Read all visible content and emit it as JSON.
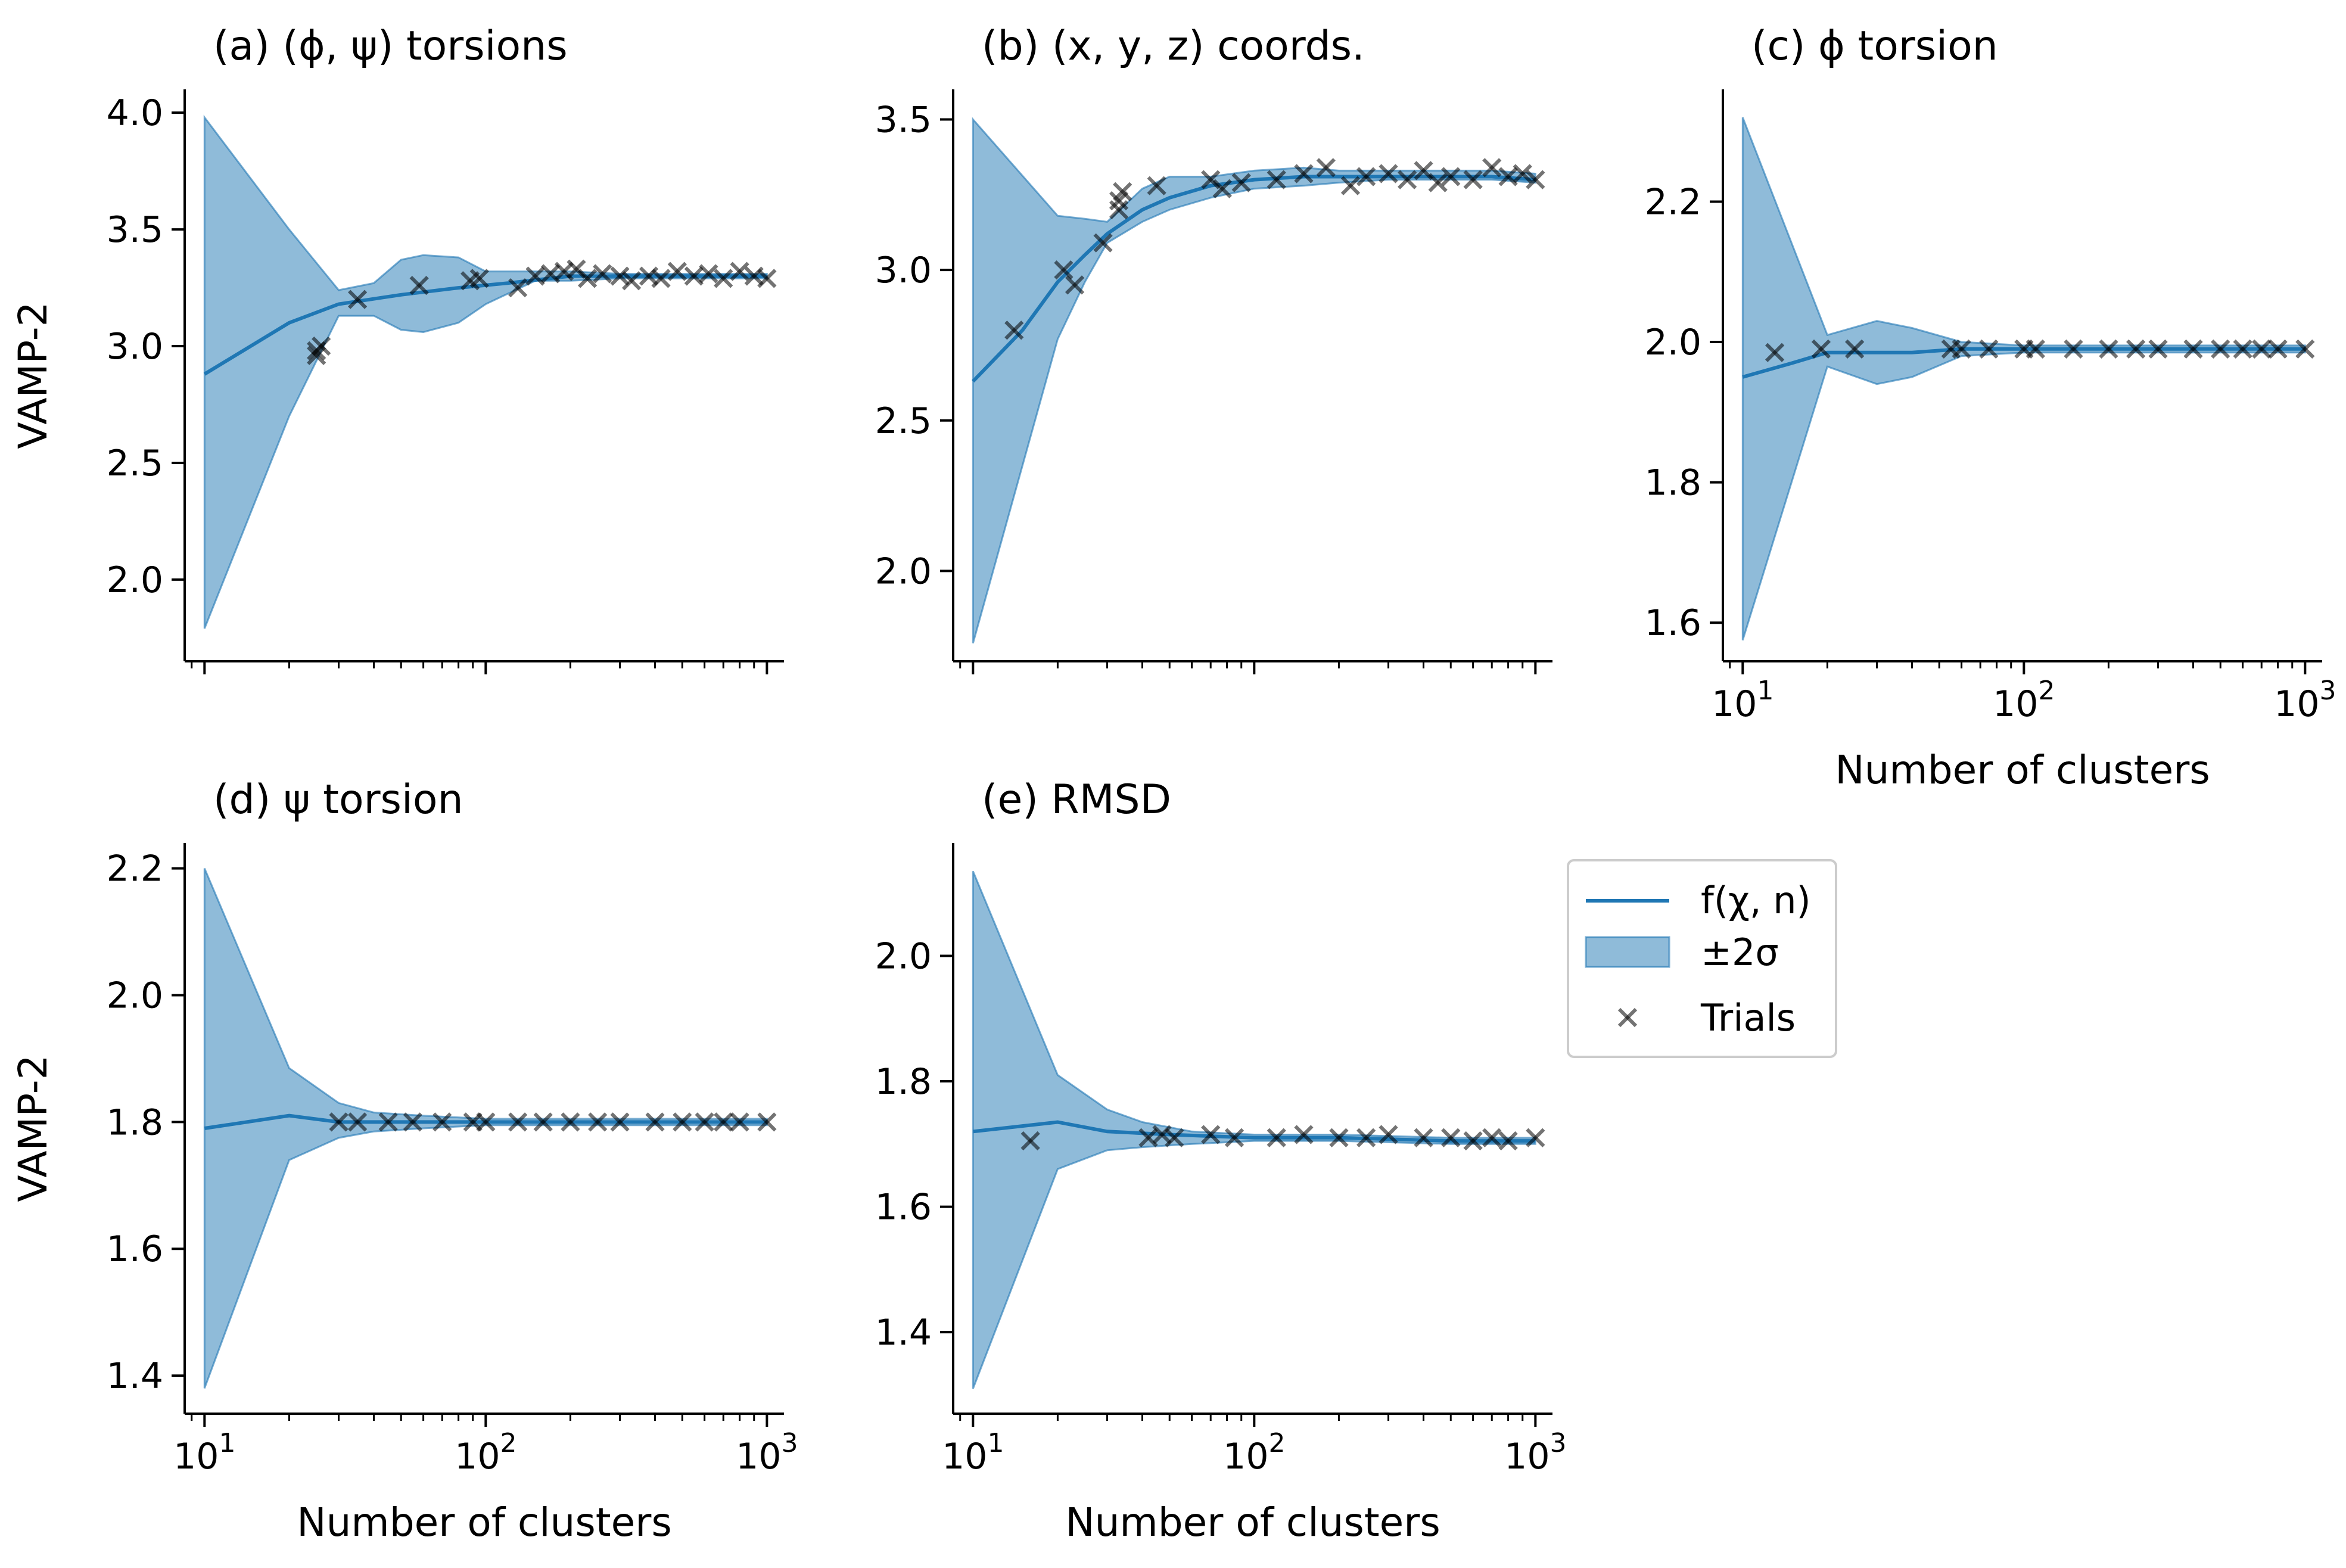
{
  "figure": {
    "xlabel": "Number of clusters",
    "ylabel": "VAMP-2",
    "legend": {
      "placement": "right of panel (e), top",
      "entries": [
        {
          "key": "mean",
          "label": "f(χ, n)"
        },
        {
          "key": "band",
          "label": "±2σ"
        },
        {
          "key": "trials",
          "label": "Trials"
        }
      ]
    },
    "colors": {
      "line": "#1f77b4",
      "band": "#1f77b4",
      "band_alpha": 0.5,
      "marker": "#000000",
      "marker_alpha": 0.55
    }
  },
  "chart_data": [
    {
      "id": "a",
      "type": "line",
      "title": "(a) (ϕ, ψ) torsions",
      "xscale": "log",
      "xlim": [
        8.5,
        1150
      ],
      "ylim": [
        1.65,
        4.1
      ],
      "xticks": [
        10,
        100,
        1000
      ],
      "xtick_labels": [
        "10^1",
        "10^2",
        "10^3"
      ],
      "show_xtick_labels": false,
      "show_xlabel": false,
      "show_ylabel": true,
      "yticks": [
        2.0,
        2.5,
        3.0,
        3.5,
        4.0
      ],
      "ytick_labels": [
        "2.0",
        "2.5",
        "3.0",
        "3.5",
        "4.0"
      ],
      "mean": {
        "x": [
          10,
          20,
          30,
          50,
          80,
          120,
          200,
          300,
          500,
          1000
        ],
        "y": [
          2.88,
          3.1,
          3.18,
          3.22,
          3.25,
          3.27,
          3.3,
          3.3,
          3.3,
          3.3
        ]
      },
      "band": {
        "x": [
          10,
          20,
          30,
          40,
          50,
          60,
          80,
          100,
          150,
          200,
          300,
          500,
          1000
        ],
        "upper": [
          3.98,
          3.5,
          3.24,
          3.27,
          3.37,
          3.39,
          3.38,
          3.32,
          3.32,
          3.32,
          3.31,
          3.31,
          3.31
        ],
        "lower": [
          1.79,
          2.7,
          3.13,
          3.13,
          3.07,
          3.06,
          3.1,
          3.18,
          3.28,
          3.28,
          3.29,
          3.29,
          3.29
        ]
      },
      "trials": {
        "x": [
          25,
          25,
          26,
          35,
          58,
          88,
          95,
          130,
          150,
          170,
          190,
          210,
          230,
          260,
          300,
          330,
          380,
          420,
          480,
          550,
          620,
          700,
          800,
          900,
          1000
        ],
        "y": [
          2.96,
          2.98,
          3.0,
          3.2,
          3.26,
          3.28,
          3.29,
          3.25,
          3.3,
          3.31,
          3.32,
          3.33,
          3.29,
          3.31,
          3.3,
          3.28,
          3.3,
          3.29,
          3.32,
          3.3,
          3.31,
          3.29,
          3.32,
          3.3,
          3.29
        ]
      }
    },
    {
      "id": "b",
      "type": "line",
      "title": "(b) (x, y, z) coords.",
      "xscale": "log",
      "xlim": [
        8.5,
        1150
      ],
      "ylim": [
        1.7,
        3.6
      ],
      "xticks": [
        10,
        100,
        1000
      ],
      "xtick_labels": [
        "10^1",
        "10^2",
        "10^3"
      ],
      "show_xtick_labels": false,
      "show_xlabel": false,
      "show_ylabel": false,
      "yticks": [
        2.0,
        2.5,
        3.0,
        3.5
      ],
      "ytick_labels": [
        "2.0",
        "2.5",
        "3.0",
        "3.5"
      ],
      "mean": {
        "x": [
          10,
          15,
          20,
          25,
          30,
          40,
          50,
          70,
          100,
          150,
          200,
          300,
          500,
          700,
          1000
        ],
        "y": [
          2.63,
          2.8,
          2.96,
          3.05,
          3.12,
          3.2,
          3.24,
          3.28,
          3.3,
          3.31,
          3.31,
          3.31,
          3.31,
          3.31,
          3.3
        ]
      },
      "band": {
        "x": [
          10,
          20,
          25,
          30,
          40,
          50,
          70,
          100,
          150,
          200,
          300,
          500,
          700,
          1000
        ],
        "upper": [
          3.5,
          3.18,
          3.17,
          3.16,
          3.27,
          3.31,
          3.31,
          3.33,
          3.34,
          3.33,
          3.33,
          3.33,
          3.33,
          3.32
        ],
        "lower": [
          1.76,
          2.77,
          2.96,
          3.09,
          3.16,
          3.2,
          3.24,
          3.27,
          3.28,
          3.29,
          3.3,
          3.3,
          3.3,
          3.29
        ]
      },
      "trials": {
        "x": [
          14,
          21,
          23,
          29,
          33,
          33,
          34,
          45,
          70,
          77,
          90,
          120,
          150,
          180,
          220,
          250,
          300,
          350,
          400,
          450,
          500,
          600,
          700,
          800,
          900,
          1000
        ],
        "y": [
          2.8,
          3.0,
          2.95,
          3.09,
          3.2,
          3.23,
          3.26,
          3.28,
          3.3,
          3.27,
          3.29,
          3.3,
          3.32,
          3.34,
          3.28,
          3.31,
          3.32,
          3.3,
          3.33,
          3.29,
          3.31,
          3.3,
          3.34,
          3.31,
          3.32,
          3.3
        ]
      }
    },
    {
      "id": "c",
      "type": "line",
      "title": "(c) ϕ torsion",
      "xscale": "log",
      "xlim": [
        8.5,
        1150
      ],
      "ylim": [
        1.545,
        2.36
      ],
      "xticks": [
        10,
        100,
        1000
      ],
      "xtick_labels": [
        "10^1",
        "10^2",
        "10^3"
      ],
      "show_xtick_labels": true,
      "show_xlabel": true,
      "show_ylabel": false,
      "yticks": [
        1.6,
        1.8,
        2.0,
        2.2
      ],
      "ytick_labels": [
        "1.6",
        "1.8",
        "2.0",
        "2.2"
      ],
      "mean": {
        "x": [
          10,
          15,
          20,
          30,
          40,
          60,
          100,
          200,
          500,
          1000
        ],
        "y": [
          1.95,
          1.97,
          1.985,
          1.985,
          1.985,
          1.99,
          1.99,
          1.99,
          1.99,
          1.99
        ]
      },
      "band": {
        "x": [
          10,
          20,
          30,
          40,
          60,
          100,
          200,
          500,
          1000
        ],
        "upper": [
          2.32,
          2.01,
          2.03,
          2.02,
          2.0,
          1.995,
          1.995,
          1.995,
          1.995
        ],
        "lower": [
          1.575,
          1.965,
          1.94,
          1.95,
          1.98,
          1.985,
          1.985,
          1.985,
          1.985
        ]
      },
      "trials": {
        "x": [
          13,
          19,
          25,
          55,
          60,
          75,
          100,
          110,
          150,
          200,
          250,
          300,
          400,
          500,
          600,
          700,
          800,
          1000
        ],
        "y": [
          1.985,
          1.99,
          1.99,
          1.99,
          1.99,
          1.99,
          1.99,
          1.99,
          1.99,
          1.99,
          1.99,
          1.99,
          1.99,
          1.99,
          1.99,
          1.99,
          1.99,
          1.99
        ]
      }
    },
    {
      "id": "d",
      "type": "line",
      "title": "(d) ψ torsion",
      "xscale": "log",
      "xlim": [
        8.5,
        1150
      ],
      "ylim": [
        1.34,
        2.24
      ],
      "xticks": [
        10,
        100,
        1000
      ],
      "xtick_labels": [
        "10^1",
        "10^2",
        "10^3"
      ],
      "show_xtick_labels": true,
      "show_xlabel": true,
      "show_ylabel": true,
      "yticks": [
        1.4,
        1.6,
        1.8,
        2.0,
        2.2
      ],
      "ytick_labels": [
        "1.4",
        "1.6",
        "1.8",
        "2.0",
        "2.2"
      ],
      "mean": {
        "x": [
          10,
          20,
          30,
          50,
          100,
          200,
          500,
          1000
        ],
        "y": [
          1.79,
          1.81,
          1.8,
          1.8,
          1.8,
          1.8,
          1.8,
          1.8
        ]
      },
      "band": {
        "x": [
          10,
          20,
          30,
          40,
          60,
          100,
          200,
          500,
          1000
        ],
        "upper": [
          2.2,
          1.885,
          1.83,
          1.815,
          1.81,
          1.805,
          1.805,
          1.805,
          1.805
        ],
        "lower": [
          1.38,
          1.74,
          1.775,
          1.785,
          1.79,
          1.795,
          1.795,
          1.795,
          1.795
        ]
      },
      "trials": {
        "x": [
          30,
          35,
          45,
          55,
          70,
          90,
          100,
          130,
          160,
          200,
          250,
          300,
          400,
          500,
          600,
          700,
          800,
          1000
        ],
        "y": [
          1.8,
          1.8,
          1.8,
          1.8,
          1.8,
          1.8,
          1.8,
          1.8,
          1.8,
          1.8,
          1.8,
          1.8,
          1.8,
          1.8,
          1.8,
          1.8,
          1.8,
          1.8
        ]
      }
    },
    {
      "id": "e",
      "type": "line",
      "title": "(e) RMSD",
      "xscale": "log",
      "xlim": [
        8.5,
        1150
      ],
      "ylim": [
        1.27,
        2.18
      ],
      "xticks": [
        10,
        100,
        1000
      ],
      "xtick_labels": [
        "10^1",
        "10^2",
        "10^3"
      ],
      "show_xtick_labels": true,
      "show_xlabel": true,
      "show_ylabel": false,
      "yticks": [
        1.4,
        1.6,
        1.8,
        2.0
      ],
      "ytick_labels": [
        "1.4",
        "1.6",
        "1.8",
        "2.0"
      ],
      "mean": {
        "x": [
          10,
          20,
          30,
          50,
          100,
          200,
          500,
          1000
        ],
        "y": [
          1.72,
          1.735,
          1.72,
          1.715,
          1.71,
          1.71,
          1.705,
          1.705
        ]
      },
      "band": {
        "x": [
          10,
          20,
          30,
          40,
          60,
          100,
          200,
          500,
          1000
        ],
        "upper": [
          2.135,
          1.81,
          1.755,
          1.735,
          1.72,
          1.715,
          1.715,
          1.71,
          1.71
        ],
        "lower": [
          1.31,
          1.66,
          1.69,
          1.695,
          1.7,
          1.705,
          1.705,
          1.7,
          1.7
        ]
      },
      "trials": {
        "x": [
          16,
          42,
          47,
          52,
          70,
          85,
          120,
          150,
          200,
          250,
          300,
          400,
          500,
          600,
          700,
          800,
          1000
        ],
        "y": [
          1.705,
          1.71,
          1.715,
          1.71,
          1.715,
          1.71,
          1.71,
          1.715,
          1.71,
          1.71,
          1.715,
          1.71,
          1.71,
          1.705,
          1.71,
          1.705,
          1.71
        ]
      }
    }
  ]
}
